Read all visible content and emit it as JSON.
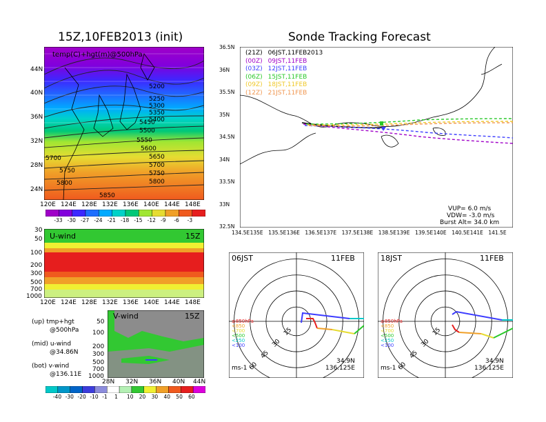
{
  "left": {
    "title": "15Z,10FEB2013 (init)",
    "top_panel": {
      "label": "temp(C)+hgt(m)@500hPa",
      "lon_ticks": [
        "120E",
        "124E",
        "128E",
        "132E",
        "136E",
        "140E",
        "144E",
        "148E"
      ],
      "lat_ticks": [
        "44N",
        "40N",
        "36N",
        "32N",
        "28N",
        "24N"
      ],
      "contour_labels": [
        "5200",
        "5250",
        "5300",
        "5350",
        "5400",
        "5450",
        "5500",
        "5550",
        "5600",
        "5650",
        "5700",
        "5750",
        "5800",
        "5850",
        "5700",
        "5750",
        "5800"
      ],
      "colorbar": [
        "-33",
        "-30",
        "-27",
        "-24",
        "-21",
        "-18",
        "-15",
        "-12",
        "-9",
        "-6",
        "-3"
      ],
      "colorbar_colors": [
        "#a000c8",
        "#8200dc",
        "#3c28ff",
        "#1e6eff",
        "#00aaff",
        "#00d2c8",
        "#00c878",
        "#a0e632",
        "#e6dc32",
        "#f0a028",
        "#f05a1e",
        "#e61e1e"
      ]
    },
    "mid_panel": {
      "label": "U-wind",
      "time": "15Z",
      "p_ticks": [
        "30",
        "50",
        "100",
        "200",
        "300",
        "500",
        "700",
        "1000"
      ],
      "lon_ticks": [
        "120E",
        "124E",
        "128E",
        "132E",
        "136E",
        "140E",
        "144E",
        "148E"
      ]
    },
    "bot_panel": {
      "label": "V-wind",
      "time": "15Z",
      "p_ticks": [
        "50",
        "100",
        "200",
        "300",
        "500",
        "700",
        "1000"
      ],
      "lat_ticks": [
        "28N",
        "32N",
        "36N",
        "40N",
        "44N"
      ],
      "colorbar": [
        "-40",
        "-30",
        "-20",
        "-10",
        "-1",
        "1",
        "10",
        "20",
        "30",
        "40",
        "50",
        "60"
      ],
      "colorbar_colors": [
        "#00c8c8",
        "#0096c8",
        "#0064c8",
        "#3c3cdc",
        "#8c8cdc",
        "#ffffff",
        "#b4f0b4",
        "#32c832",
        "#f0f032",
        "#f0a028",
        "#f05a1e",
        "#e61e1e",
        "#dc00dc"
      ]
    },
    "legend": {
      "up": "(up) tmp+hgt",
      "up2": "@500hPa",
      "mid": "(mid) u-wind",
      "mid2": "@34.86N",
      "bot": "(bot) v-wind",
      "bot2": "@136.11E"
    }
  },
  "right": {
    "title": "Sonde Tracking Forecast",
    "lat_ticks": [
      "36.5N",
      "36N",
      "35.5N",
      "35N",
      "34.5N",
      "34N",
      "33.5N",
      "33N",
      "32.5N"
    ],
    "lon_ticks": [
      "134.5E",
      "135E",
      "135.5E",
      "136E",
      "136.5E",
      "137E",
      "137.5E",
      "138E",
      "138.5E",
      "139E",
      "139.5E",
      "140E",
      "140.5E",
      "141E",
      "141.5E"
    ],
    "launches": [
      {
        "z": "(21Z)",
        "jst": "06JST,11FEB2013",
        "color": "#000000"
      },
      {
        "z": "(00Z)",
        "jst": "09JST,11FEB",
        "color": "#a000c8"
      },
      {
        "z": "(03Z)",
        "jst": "12JST,11FEB",
        "color": "#3c3cff"
      },
      {
        "z": "(06Z)",
        "jst": "15JST,11FEB",
        "color": "#28c828"
      },
      {
        "z": "(09Z)",
        "jst": "18JST,11FEB",
        "color": "#f0c828"
      },
      {
        "z": "(12Z)",
        "jst": "21JST,11FEB",
        "color": "#f09650"
      }
    ],
    "params": {
      "vup": "VUP=  6.0  m/s",
      "vdw": "VDW= -3.0  m/s",
      "burst": "Burst Alt=  34.0  km"
    },
    "hodo_left": {
      "time": "06JST",
      "date": "11FEB",
      "lat": "34.9N",
      "lon": "136.125E",
      "unit": "ms-1"
    },
    "hodo_right": {
      "time": "18JST",
      "date": "11FEB",
      "lat": "34.9N",
      "lon": "136.125E",
      "unit": "ms-1"
    },
    "rings": [
      "15",
      "30",
      "45",
      "60"
    ],
    "levels": [
      "≥850hPa",
      "<850",
      "<700",
      "<500",
      "<250",
      "<100"
    ],
    "level_colors": [
      "#e61e1e",
      "#f0a028",
      "#e6dc32",
      "#28c828",
      "#00c8c8",
      "#3c3cff"
    ]
  }
}
